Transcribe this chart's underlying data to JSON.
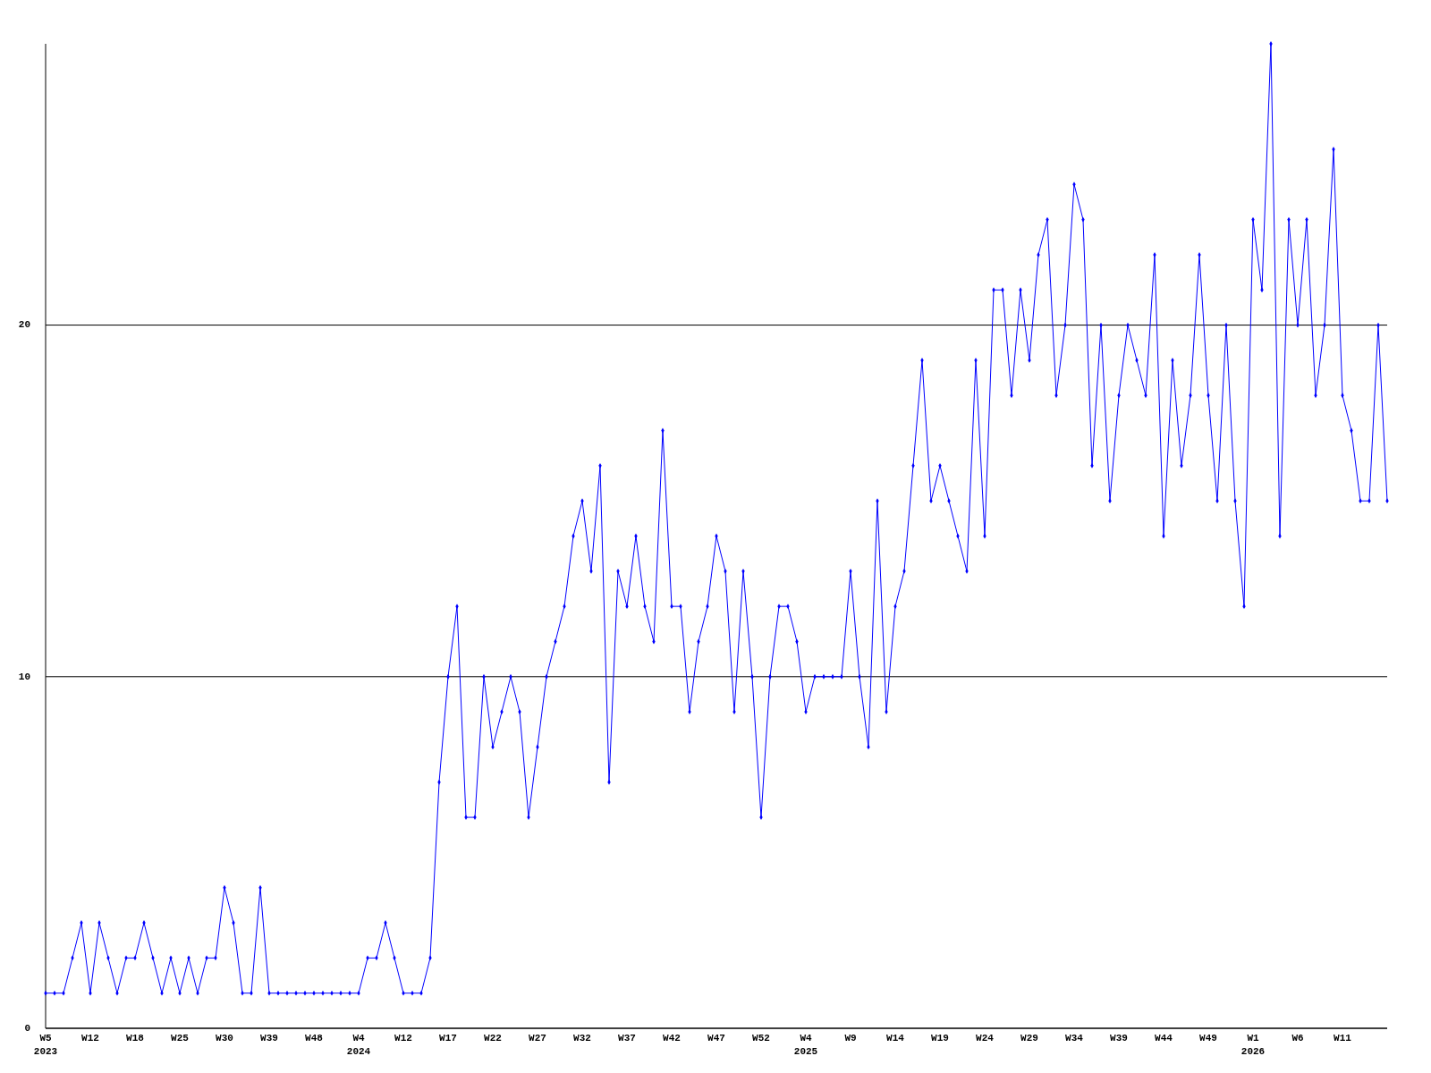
{
  "chart_data": {
    "type": "line",
    "categories": [
      "W5\n2023",
      null,
      null,
      null,
      null,
      "W12",
      null,
      null,
      null,
      null,
      "W18",
      null,
      null,
      null,
      null,
      "W25",
      null,
      null,
      null,
      null,
      "W30",
      null,
      null,
      null,
      null,
      "W39",
      null,
      null,
      null,
      null,
      "W48",
      null,
      null,
      null,
      null,
      "W4\n2024",
      null,
      null,
      null,
      null,
      "W12",
      null,
      null,
      null,
      null,
      "W17",
      null,
      null,
      null,
      null,
      "W22",
      null,
      null,
      null,
      null,
      "W27",
      null,
      null,
      null,
      null,
      "W32",
      null,
      null,
      null,
      null,
      "W37",
      null,
      null,
      null,
      null,
      "W42",
      null,
      null,
      null,
      null,
      "W47",
      null,
      null,
      null,
      null,
      "W52",
      null,
      null,
      null,
      null,
      "W4\n2025",
      null,
      null,
      null,
      null,
      "W9",
      null,
      null,
      null,
      null,
      "W14",
      null,
      null,
      null,
      null,
      "W19",
      null,
      null,
      null,
      null,
      "W24",
      null,
      null,
      null,
      null,
      "W29",
      null,
      null,
      null,
      null,
      "W34",
      null,
      null,
      null,
      null,
      "W39",
      null,
      null,
      null,
      null,
      "W44",
      null,
      null,
      null,
      null,
      "W49",
      null,
      null,
      null,
      null,
      "W1\n2026",
      null,
      null,
      null,
      null,
      "W6",
      null,
      null,
      null,
      null,
      "W11",
      null,
      null,
      null,
      null,
      null
    ],
    "values": [
      1,
      1,
      1,
      2,
      3,
      1,
      3,
      2,
      1,
      2,
      2,
      3,
      2,
      1,
      2,
      1,
      2,
      1,
      2,
      2,
      4,
      3,
      1,
      1,
      4,
      1,
      1,
      1,
      1,
      1,
      1,
      1,
      1,
      1,
      1,
      1,
      2,
      2,
      3,
      2,
      1,
      1,
      1,
      2,
      7,
      10,
      12,
      6,
      6,
      10,
      8,
      9,
      10,
      9,
      6,
      8,
      10,
      11,
      12,
      14,
      15,
      13,
      16,
      7,
      13,
      12,
      14,
      12,
      11,
      17,
      12,
      12,
      9,
      11,
      12,
      14,
      13,
      9,
      13,
      10,
      6,
      10,
      12,
      12,
      11,
      9,
      10,
      10,
      10,
      10,
      13,
      10,
      8,
      15,
      9,
      12,
      13,
      16,
      19,
      15,
      16,
      15,
      14,
      13,
      19,
      14,
      21,
      21,
      18,
      21,
      19,
      22,
      23,
      18,
      20,
      24,
      23,
      16,
      20,
      15,
      18,
      20,
      19,
      18,
      22,
      14,
      19,
      16,
      18,
      22,
      18,
      15,
      20,
      15,
      12,
      23,
      21,
      28,
      14,
      23,
      20,
      23,
      18,
      20,
      25,
      18,
      17,
      15,
      15,
      20,
      15
    ],
    "color": "#0000ff",
    "ylim": [
      0,
      28
    ],
    "yticks": [
      0,
      10,
      20
    ],
    "grid": "y",
    "marker": "diamond",
    "line_style": "solid"
  }
}
